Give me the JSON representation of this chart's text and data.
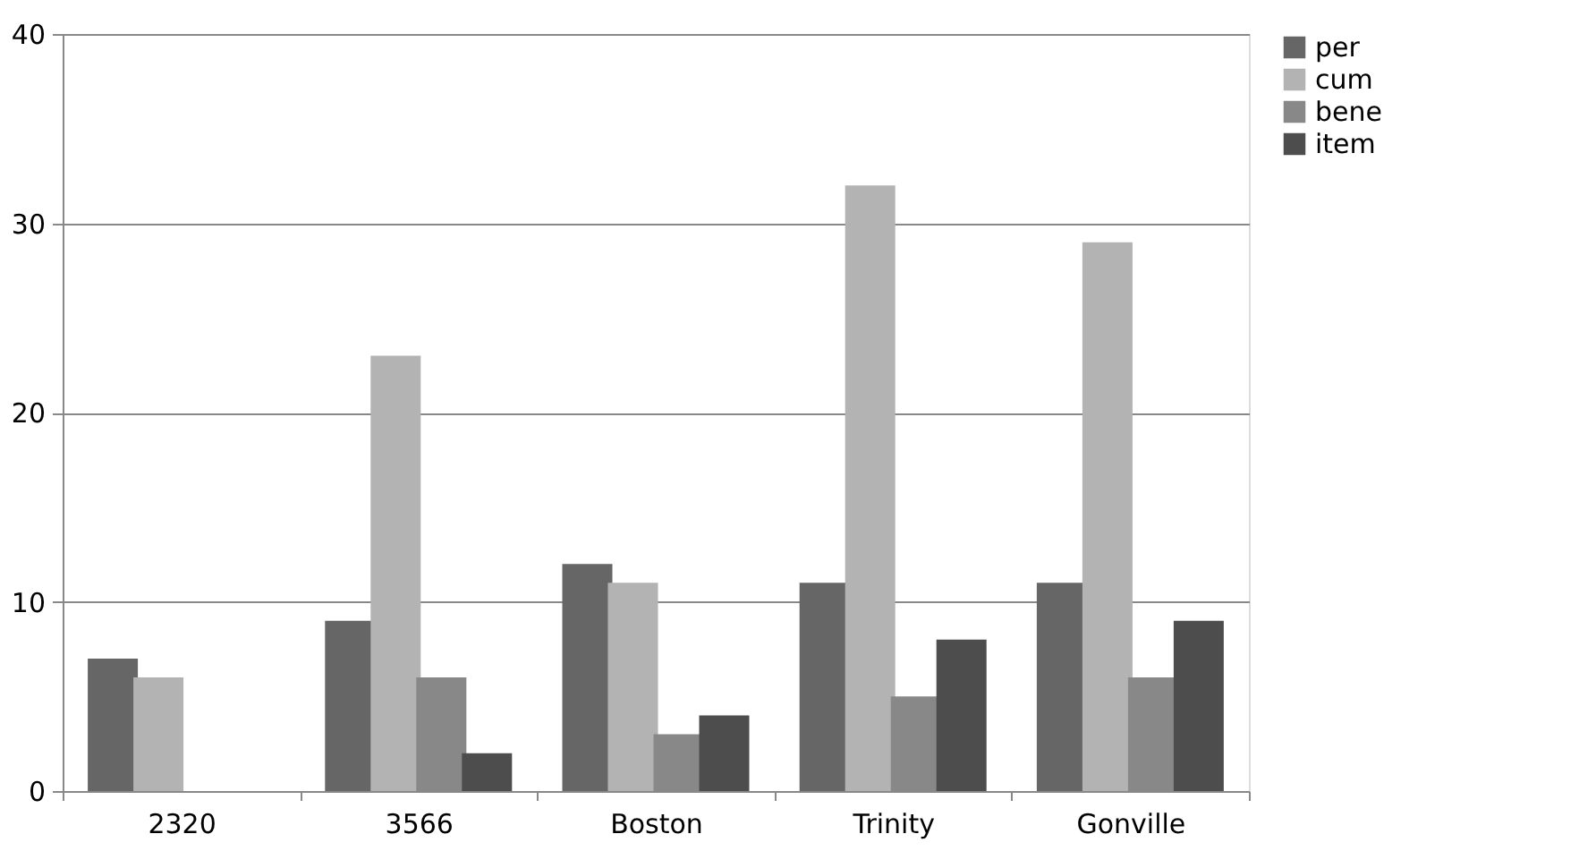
{
  "chart_data": {
    "type": "bar",
    "categories": [
      "2320",
      "3566",
      "Boston",
      "Trinity",
      "Gonville"
    ],
    "series": [
      {
        "name": "per",
        "color": "#666666",
        "values": [
          7,
          9,
          12,
          11,
          11
        ]
      },
      {
        "name": "cum",
        "color": "#b3b3b3",
        "values": [
          6,
          23,
          11,
          32,
          29
        ]
      },
      {
        "name": "bene",
        "color": "#888888",
        "values": [
          null,
          6,
          3,
          5,
          6
        ]
      },
      {
        "name": "item",
        "color": "#4d4d4d",
        "values": [
          null,
          2,
          4,
          8,
          9
        ]
      }
    ],
    "ylim": [
      0,
      40
    ],
    "yticks": [
      0,
      10,
      20,
      30,
      40
    ],
    "grid": "y",
    "legend": "right"
  }
}
